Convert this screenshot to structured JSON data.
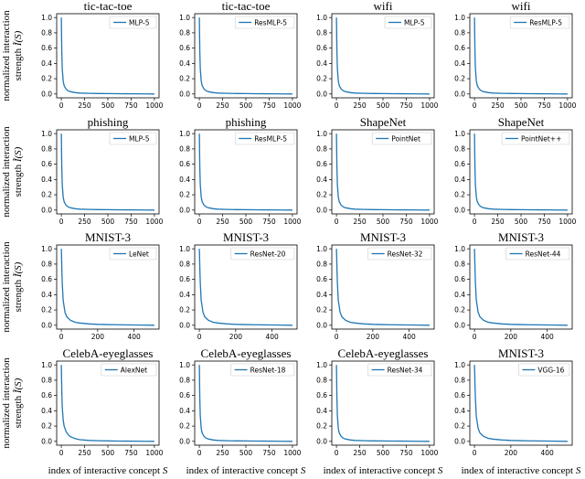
{
  "ylabel_line1": "normalized interaction",
  "ylabel_line2": "strength",
  "ylabel_symbol": "Ĩ(S)",
  "xlabel": "index of interactive concept",
  "xlabel_symbol": "S",
  "chart_data": [
    {
      "type": "line",
      "title": "tic-tac-toe",
      "series": [
        {
          "name": "MLP-5"
        }
      ],
      "xlim": [
        0,
        1000
      ],
      "xticks": [
        0,
        250,
        500,
        750,
        1000
      ],
      "ylim": [
        0,
        1
      ],
      "yticks": [
        0.0,
        0.2,
        0.4,
        0.6,
        0.8,
        1.0
      ],
      "x": [
        0,
        1,
        2,
        3,
        5,
        10,
        20,
        30,
        50,
        75,
        100,
        150,
        200,
        300,
        400,
        500,
        600,
        700,
        800,
        900,
        1000
      ],
      "values": [
        1.0,
        0.92,
        0.82,
        0.72,
        0.56,
        0.33,
        0.17,
        0.11,
        0.065,
        0.04,
        0.03,
        0.018,
        0.012,
        0.008,
        0.006,
        0.005,
        0.004,
        0.003,
        0.002,
        0.001,
        0.0
      ]
    },
    {
      "type": "line",
      "title": "tic-tac-toe",
      "series": [
        {
          "name": "ResMLP-5"
        }
      ],
      "xlim": [
        0,
        1000
      ],
      "xticks": [
        0,
        250,
        500,
        750,
        1000
      ],
      "ylim": [
        0,
        1
      ],
      "yticks": [
        0.0,
        0.2,
        0.4,
        0.6,
        0.8,
        1.0
      ],
      "x": [
        0,
        1,
        2,
        3,
        5,
        10,
        20,
        30,
        50,
        75,
        100,
        150,
        200,
        300,
        400,
        500,
        600,
        700,
        800,
        900,
        1000
      ],
      "values": [
        1.0,
        0.92,
        0.82,
        0.72,
        0.56,
        0.33,
        0.17,
        0.11,
        0.065,
        0.04,
        0.03,
        0.018,
        0.012,
        0.008,
        0.006,
        0.005,
        0.004,
        0.003,
        0.002,
        0.001,
        0.0
      ]
    },
    {
      "type": "line",
      "title": "wifi",
      "series": [
        {
          "name": "MLP-5"
        }
      ],
      "xlim": [
        0,
        1000
      ],
      "xticks": [
        0,
        250,
        500,
        750,
        1000
      ],
      "ylim": [
        0,
        1
      ],
      "yticks": [
        0.0,
        0.2,
        0.4,
        0.6,
        0.8,
        1.0
      ],
      "x": [
        0,
        1,
        2,
        3,
        5,
        10,
        20,
        30,
        50,
        75,
        100,
        150,
        200,
        300,
        400,
        500,
        600,
        700,
        800,
        900,
        1000
      ],
      "values": [
        1.0,
        0.92,
        0.82,
        0.72,
        0.56,
        0.33,
        0.17,
        0.11,
        0.065,
        0.04,
        0.03,
        0.018,
        0.012,
        0.008,
        0.006,
        0.005,
        0.004,
        0.003,
        0.002,
        0.001,
        0.0
      ]
    },
    {
      "type": "line",
      "title": "wifi",
      "series": [
        {
          "name": "ResMLP-5"
        }
      ],
      "xlim": [
        0,
        1000
      ],
      "xticks": [
        0,
        250,
        500,
        750,
        1000
      ],
      "ylim": [
        0,
        1
      ],
      "yticks": [
        0.0,
        0.2,
        0.4,
        0.6,
        0.8,
        1.0
      ],
      "x": [
        0,
        1,
        2,
        3,
        5,
        10,
        20,
        30,
        50,
        75,
        100,
        150,
        200,
        300,
        400,
        500,
        600,
        700,
        800,
        900,
        1000
      ],
      "values": [
        1.0,
        0.92,
        0.82,
        0.72,
        0.56,
        0.33,
        0.17,
        0.11,
        0.065,
        0.04,
        0.03,
        0.018,
        0.012,
        0.008,
        0.006,
        0.005,
        0.004,
        0.003,
        0.002,
        0.001,
        0.0
      ]
    },
    {
      "type": "line",
      "title": "phishing",
      "series": [
        {
          "name": "MLP-5"
        }
      ],
      "xlim": [
        0,
        1000
      ],
      "xticks": [
        0,
        250,
        500,
        750,
        1000
      ],
      "ylim": [
        0,
        1
      ],
      "yticks": [
        0.0,
        0.2,
        0.4,
        0.6,
        0.8,
        1.0
      ],
      "x": [
        0,
        1,
        2,
        3,
        5,
        10,
        20,
        30,
        50,
        75,
        100,
        150,
        200,
        300,
        400,
        500,
        600,
        700,
        800,
        900,
        1000
      ],
      "values": [
        1.0,
        0.92,
        0.82,
        0.72,
        0.56,
        0.33,
        0.17,
        0.11,
        0.065,
        0.04,
        0.03,
        0.018,
        0.012,
        0.008,
        0.006,
        0.005,
        0.004,
        0.003,
        0.002,
        0.001,
        0.0
      ]
    },
    {
      "type": "line",
      "title": "phishing",
      "series": [
        {
          "name": "ResMLP-5"
        }
      ],
      "xlim": [
        0,
        1000
      ],
      "xticks": [
        0,
        250,
        500,
        750,
        1000
      ],
      "ylim": [
        0,
        1
      ],
      "yticks": [
        0.0,
        0.2,
        0.4,
        0.6,
        0.8,
        1.0
      ],
      "x": [
        0,
        1,
        2,
        3,
        5,
        10,
        20,
        30,
        50,
        75,
        100,
        150,
        200,
        300,
        400,
        500,
        600,
        700,
        800,
        900,
        1000
      ],
      "values": [
        1.0,
        0.92,
        0.82,
        0.72,
        0.56,
        0.33,
        0.17,
        0.11,
        0.065,
        0.04,
        0.03,
        0.018,
        0.012,
        0.008,
        0.006,
        0.005,
        0.004,
        0.003,
        0.002,
        0.001,
        0.0
      ]
    },
    {
      "type": "line",
      "title": "ShapeNet",
      "series": [
        {
          "name": "PointNet"
        }
      ],
      "xlim": [
        0,
        1000
      ],
      "xticks": [
        0,
        250,
        500,
        750,
        1000
      ],
      "ylim": [
        0,
        1
      ],
      "yticks": [
        0.0,
        0.2,
        0.4,
        0.6,
        0.8,
        1.0
      ],
      "x": [
        0,
        1,
        2,
        3,
        5,
        10,
        20,
        30,
        50,
        75,
        100,
        150,
        200,
        300,
        400,
        500,
        600,
        700,
        800,
        900,
        1000
      ],
      "values": [
        1.0,
        0.92,
        0.82,
        0.72,
        0.56,
        0.33,
        0.17,
        0.11,
        0.065,
        0.04,
        0.03,
        0.018,
        0.012,
        0.008,
        0.006,
        0.005,
        0.004,
        0.003,
        0.002,
        0.001,
        0.0
      ]
    },
    {
      "type": "line",
      "title": "ShapeNet",
      "series": [
        {
          "name": "PointNet++"
        }
      ],
      "xlim": [
        0,
        1000
      ],
      "xticks": [
        0,
        250,
        500,
        750,
        1000
      ],
      "ylim": [
        0,
        1
      ],
      "yticks": [
        0.0,
        0.2,
        0.4,
        0.6,
        0.8,
        1.0
      ],
      "x": [
        0,
        1,
        2,
        3,
        5,
        10,
        20,
        30,
        50,
        75,
        100,
        150,
        200,
        300,
        400,
        500,
        600,
        700,
        800,
        900,
        1000
      ],
      "values": [
        1.0,
        0.92,
        0.82,
        0.72,
        0.56,
        0.33,
        0.17,
        0.11,
        0.065,
        0.04,
        0.03,
        0.018,
        0.012,
        0.008,
        0.006,
        0.005,
        0.004,
        0.003,
        0.002,
        0.001,
        0.0
      ]
    },
    {
      "type": "line",
      "title": "MNIST-3",
      "series": [
        {
          "name": "LeNet"
        }
      ],
      "xlim": [
        0,
        512
      ],
      "xticks": [
        0,
        200,
        400
      ],
      "ylim": [
        0,
        1
      ],
      "yticks": [
        0.0,
        0.2,
        0.4,
        0.6,
        0.8,
        1.0
      ],
      "x": [
        0,
        1,
        2,
        3,
        5,
        10,
        20,
        30,
        50,
        75,
        100,
        150,
        200,
        250,
        300,
        350,
        400,
        450,
        512
      ],
      "values": [
        1.0,
        0.92,
        0.82,
        0.72,
        0.56,
        0.33,
        0.17,
        0.11,
        0.065,
        0.04,
        0.03,
        0.018,
        0.012,
        0.009,
        0.007,
        0.005,
        0.004,
        0.002,
        0.0
      ]
    },
    {
      "type": "line",
      "title": "MNIST-3",
      "series": [
        {
          "name": "ResNet-20"
        }
      ],
      "xlim": [
        0,
        512
      ],
      "xticks": [
        0,
        200,
        400
      ],
      "ylim": [
        0,
        1
      ],
      "yticks": [
        0.0,
        0.2,
        0.4,
        0.6,
        0.8,
        1.0
      ],
      "x": [
        0,
        1,
        2,
        3,
        5,
        10,
        20,
        30,
        50,
        75,
        100,
        150,
        200,
        250,
        300,
        350,
        400,
        450,
        512
      ],
      "values": [
        1.0,
        0.92,
        0.82,
        0.72,
        0.56,
        0.33,
        0.17,
        0.11,
        0.065,
        0.04,
        0.03,
        0.018,
        0.012,
        0.009,
        0.007,
        0.005,
        0.004,
        0.002,
        0.0
      ]
    },
    {
      "type": "line",
      "title": "MNIST-3",
      "series": [
        {
          "name": "ResNet-32"
        }
      ],
      "xlim": [
        0,
        512
      ],
      "xticks": [
        0,
        200,
        400
      ],
      "ylim": [
        0,
        1
      ],
      "yticks": [
        0.0,
        0.2,
        0.4,
        0.6,
        0.8,
        1.0
      ],
      "x": [
        0,
        1,
        2,
        3,
        5,
        10,
        20,
        30,
        50,
        75,
        100,
        150,
        200,
        250,
        300,
        350,
        400,
        450,
        512
      ],
      "values": [
        1.0,
        0.92,
        0.82,
        0.72,
        0.56,
        0.33,
        0.17,
        0.11,
        0.065,
        0.04,
        0.03,
        0.018,
        0.012,
        0.009,
        0.007,
        0.005,
        0.004,
        0.002,
        0.0
      ]
    },
    {
      "type": "line",
      "title": "MNIST-3",
      "series": [
        {
          "name": "ResNet-44"
        }
      ],
      "xlim": [
        0,
        512
      ],
      "xticks": [
        0,
        200,
        400
      ],
      "ylim": [
        0,
        1
      ],
      "yticks": [
        0.0,
        0.2,
        0.4,
        0.6,
        0.8,
        1.0
      ],
      "x": [
        0,
        1,
        2,
        3,
        5,
        10,
        20,
        30,
        50,
        75,
        100,
        150,
        200,
        250,
        300,
        350,
        400,
        450,
        512
      ],
      "values": [
        1.0,
        0.92,
        0.82,
        0.72,
        0.56,
        0.33,
        0.17,
        0.11,
        0.065,
        0.04,
        0.03,
        0.018,
        0.012,
        0.009,
        0.007,
        0.005,
        0.004,
        0.002,
        0.0
      ]
    },
    {
      "type": "line",
      "title": "CelebA-eyeglasses",
      "series": [
        {
          "name": "AlexNet"
        }
      ],
      "xlim": [
        0,
        1000
      ],
      "xticks": [
        0,
        250,
        500,
        750,
        1000
      ],
      "ylim": [
        0,
        1
      ],
      "yticks": [
        0.0,
        0.2,
        0.4,
        0.6,
        0.8,
        1.0
      ],
      "x": [
        0,
        1,
        2,
        3,
        5,
        10,
        20,
        30,
        50,
        75,
        100,
        150,
        200,
        300,
        400,
        500,
        600,
        700,
        800,
        900,
        1000
      ],
      "values": [
        1.0,
        0.95,
        0.88,
        0.8,
        0.66,
        0.45,
        0.28,
        0.2,
        0.13,
        0.085,
        0.06,
        0.035,
        0.022,
        0.012,
        0.008,
        0.006,
        0.004,
        0.003,
        0.002,
        0.001,
        0.0
      ]
    },
    {
      "type": "line",
      "title": "CelebA-eyeglasses",
      "series": [
        {
          "name": "ResNet-18"
        }
      ],
      "xlim": [
        0,
        1000
      ],
      "xticks": [
        0,
        250,
        500,
        750,
        1000
      ],
      "ylim": [
        0,
        1
      ],
      "yticks": [
        0.0,
        0.2,
        0.4,
        0.6,
        0.8,
        1.0
      ],
      "x": [
        0,
        1,
        2,
        3,
        5,
        10,
        20,
        30,
        50,
        75,
        100,
        150,
        200,
        300,
        400,
        500,
        600,
        700,
        800,
        900,
        1000
      ],
      "values": [
        1.0,
        0.92,
        0.82,
        0.72,
        0.56,
        0.33,
        0.17,
        0.11,
        0.065,
        0.04,
        0.03,
        0.018,
        0.012,
        0.008,
        0.006,
        0.005,
        0.004,
        0.003,
        0.002,
        0.001,
        0.0
      ]
    },
    {
      "type": "line",
      "title": "CelebA-eyeglasses",
      "series": [
        {
          "name": "ResNet-34"
        }
      ],
      "xlim": [
        0,
        1000
      ],
      "xticks": [
        0,
        250,
        500,
        750,
        1000
      ],
      "ylim": [
        0,
        1
      ],
      "yticks": [
        0.0,
        0.2,
        0.4,
        0.6,
        0.8,
        1.0
      ],
      "x": [
        0,
        1,
        2,
        3,
        5,
        10,
        20,
        30,
        50,
        75,
        100,
        150,
        200,
        300,
        400,
        500,
        600,
        700,
        800,
        900,
        1000
      ],
      "values": [
        1.0,
        0.92,
        0.82,
        0.72,
        0.56,
        0.33,
        0.17,
        0.11,
        0.065,
        0.04,
        0.03,
        0.018,
        0.012,
        0.008,
        0.006,
        0.005,
        0.004,
        0.003,
        0.002,
        0.001,
        0.0
      ]
    },
    {
      "type": "line",
      "title": "MNIST-3",
      "series": [
        {
          "name": "VGG-16"
        }
      ],
      "xlim": [
        0,
        512
      ],
      "xticks": [
        0,
        200,
        400
      ],
      "ylim": [
        0,
        1
      ],
      "yticks": [
        0.0,
        0.2,
        0.4,
        0.6,
        0.8,
        1.0
      ],
      "x": [
        0,
        1,
        2,
        3,
        5,
        10,
        20,
        30,
        50,
        75,
        100,
        150,
        200,
        250,
        300,
        350,
        400,
        450,
        512
      ],
      "values": [
        1.0,
        0.92,
        0.82,
        0.72,
        0.56,
        0.33,
        0.17,
        0.11,
        0.065,
        0.04,
        0.03,
        0.018,
        0.012,
        0.009,
        0.007,
        0.005,
        0.004,
        0.002,
        0.0
      ]
    }
  ]
}
